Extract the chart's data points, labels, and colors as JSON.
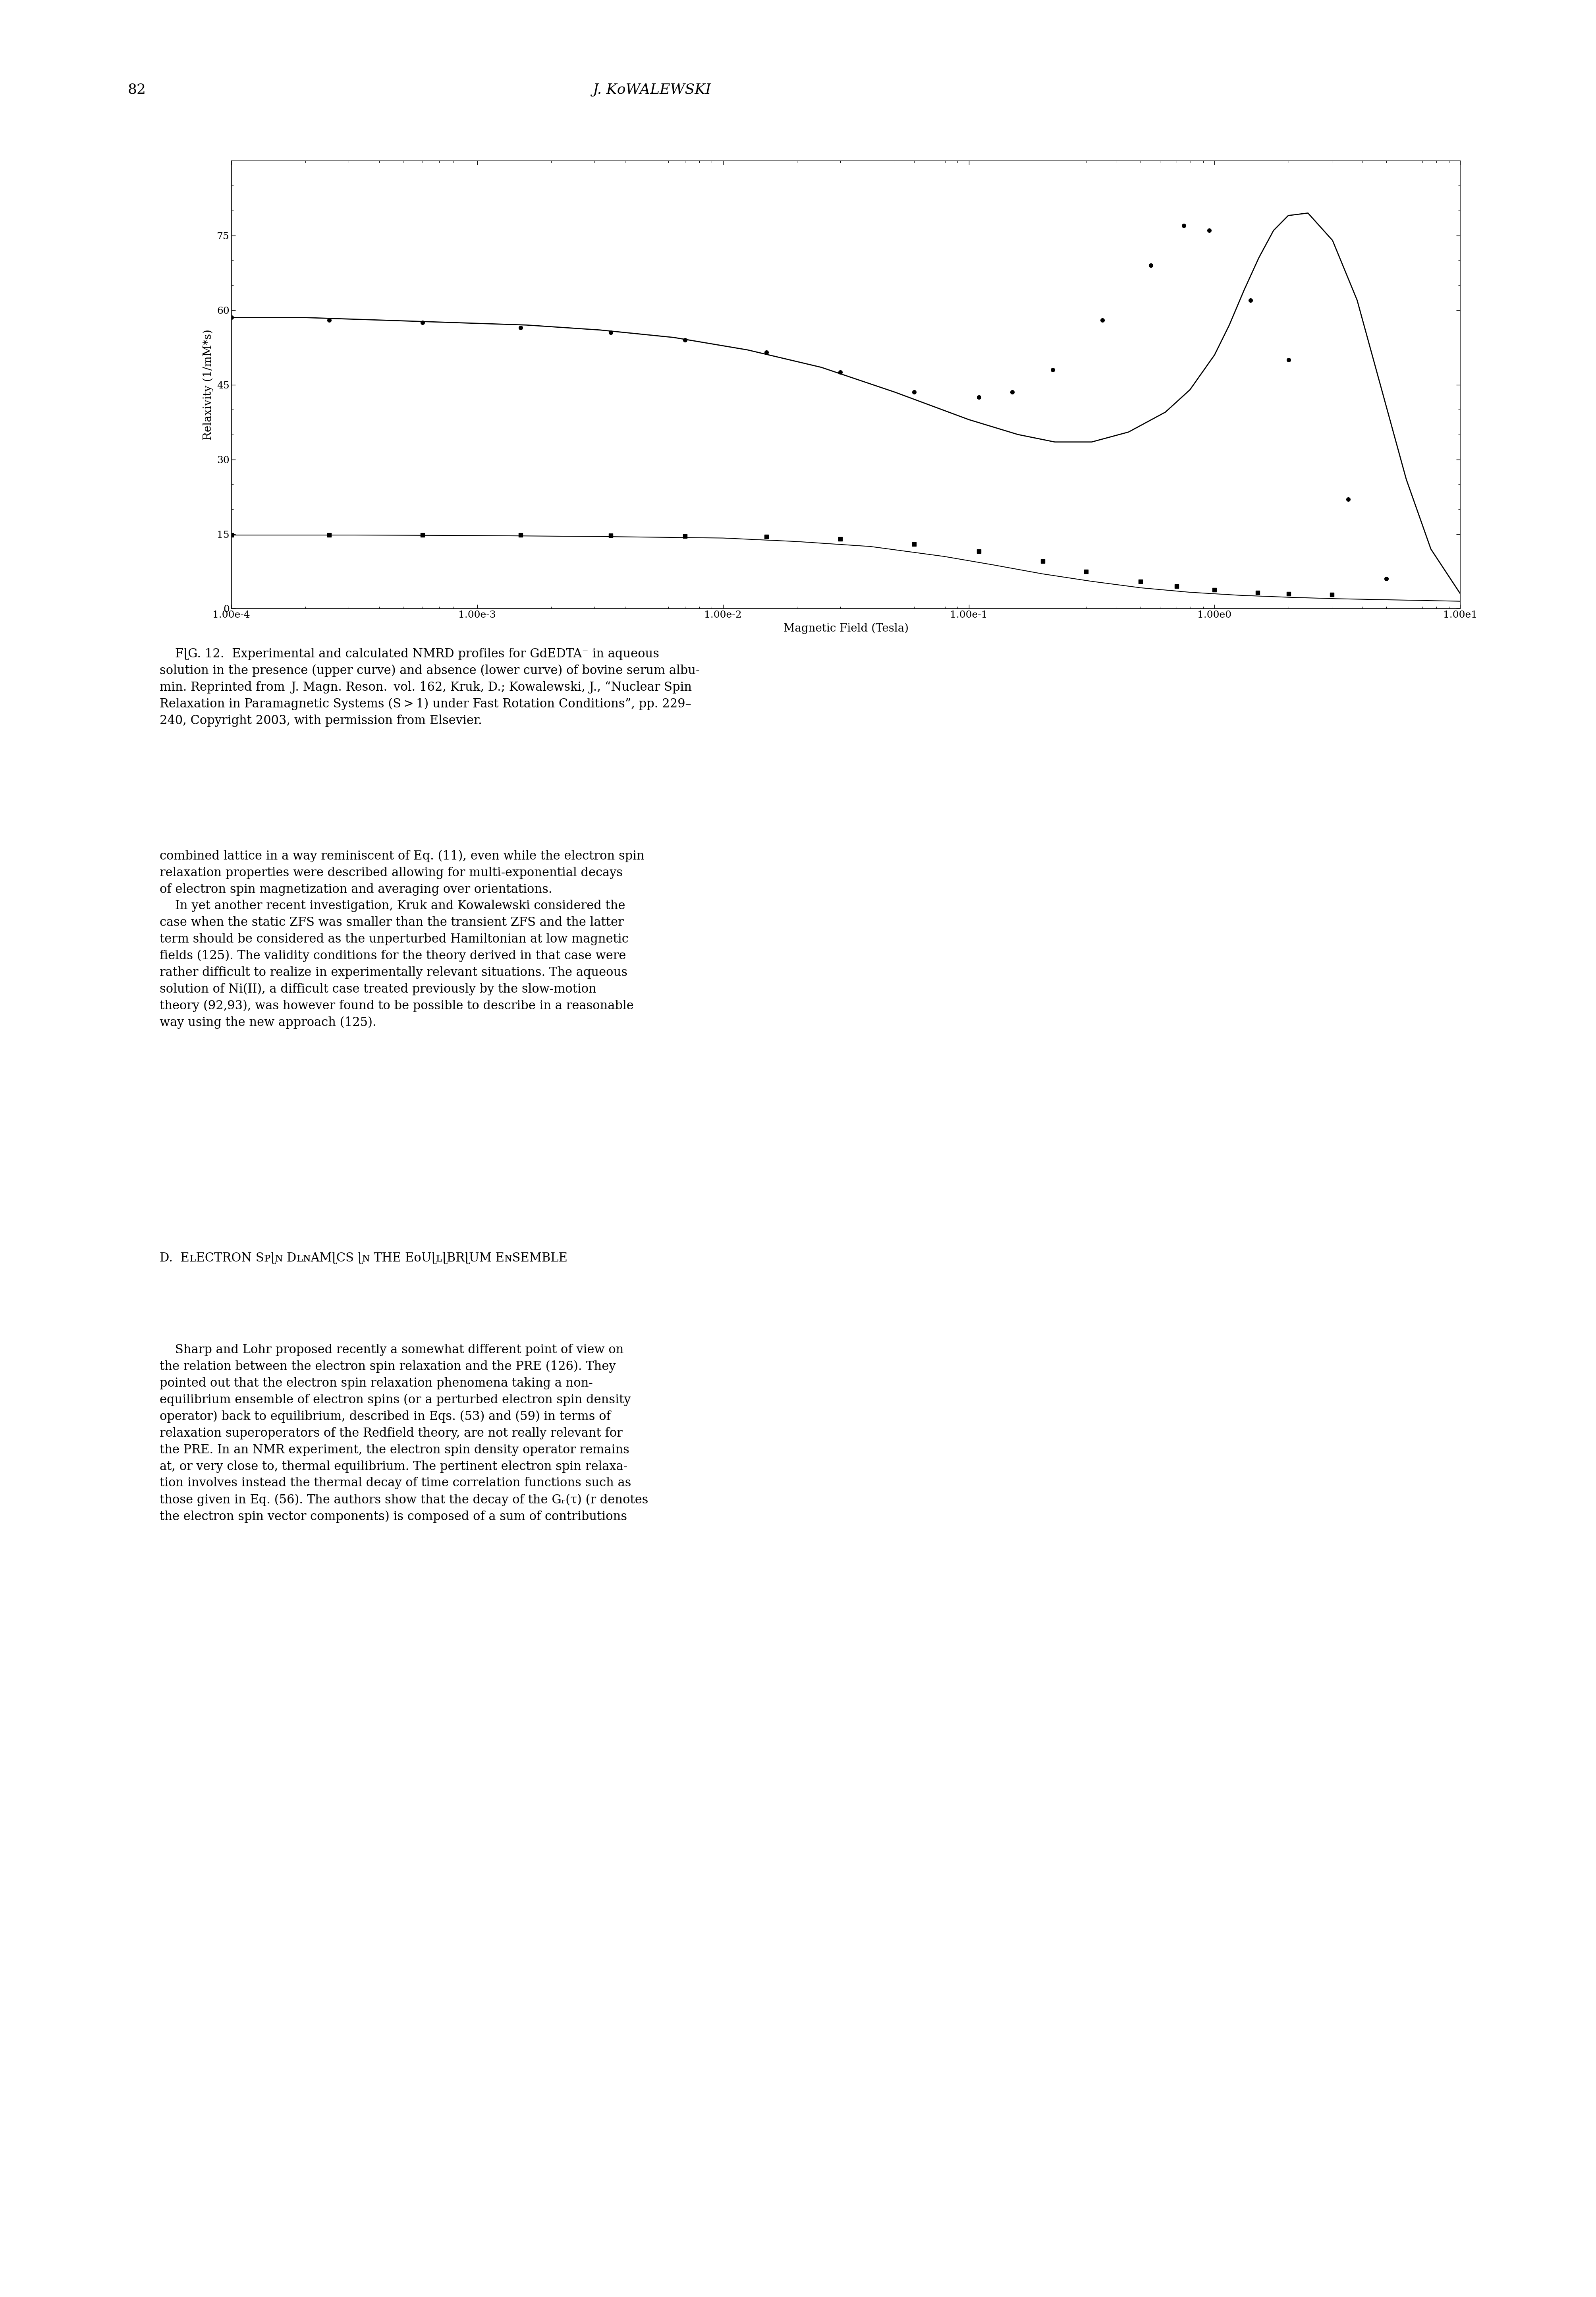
{
  "page_number": "82",
  "ylabel": "Relaxivity (1/mM*s)",
  "xlabel": "Magnetic Field (Tesla)",
  "ylim": [
    0,
    90
  ],
  "yticks": [
    0,
    15,
    30,
    45,
    60,
    75
  ],
  "xticks_log": [
    -4,
    -3,
    -2,
    -1,
    0,
    1
  ],
  "xtick_labels": [
    "1.00e-4",
    "1.00e-3",
    "1.00e-2",
    "1.00e-1",
    "1.00e0",
    "1.00e1"
  ],
  "upper_scatter_x": [
    0.0001,
    0.00025,
    0.0006,
    0.0015,
    0.0035,
    0.007,
    0.015,
    0.03,
    0.06,
    0.11,
    0.15,
    0.22,
    0.35,
    0.55,
    0.75,
    0.95,
    1.4,
    2.0,
    3.5,
    5.0
  ],
  "upper_scatter_y": [
    58.5,
    58.0,
    57.5,
    56.5,
    55.5,
    54.0,
    51.5,
    47.5,
    43.5,
    42.5,
    43.5,
    48.0,
    58.0,
    69.0,
    77.0,
    76.0,
    62.0,
    50.0,
    22.0,
    6.0
  ],
  "lower_scatter_x": [
    0.0001,
    0.00025,
    0.0006,
    0.0015,
    0.0035,
    0.007,
    0.015,
    0.03,
    0.06,
    0.11,
    0.2,
    0.3,
    0.5,
    0.7,
    1.0,
    1.5,
    2.0,
    3.0
  ],
  "lower_scatter_y": [
    14.8,
    14.8,
    14.8,
    14.8,
    14.7,
    14.6,
    14.5,
    14.0,
    13.0,
    11.5,
    9.5,
    7.5,
    5.5,
    4.5,
    3.8,
    3.2,
    3.0,
    2.8
  ],
  "upper_curve_x_log": [
    -4.0,
    -3.7,
    -3.4,
    -3.1,
    -2.8,
    -2.5,
    -2.2,
    -1.9,
    -1.6,
    -1.3,
    -1.0,
    -0.8,
    -0.65,
    -0.5,
    -0.35,
    -0.2,
    -0.1,
    0.0,
    0.06,
    0.12,
    0.18,
    0.24,
    0.3,
    0.38,
    0.48,
    0.58,
    0.68,
    0.78,
    0.88,
    1.0
  ],
  "upper_curve_y": [
    58.5,
    58.5,
    58.0,
    57.5,
    57.0,
    56.0,
    54.5,
    52.0,
    48.5,
    43.5,
    38.0,
    35.0,
    33.5,
    33.5,
    35.5,
    39.5,
    44.0,
    51.0,
    57.0,
    64.0,
    70.5,
    76.0,
    79.0,
    79.5,
    74.0,
    62.0,
    44.0,
    26.0,
    12.0,
    3.0
  ],
  "lower_curve_x_log": [
    -4.0,
    -3.5,
    -3.0,
    -2.5,
    -2.0,
    -1.7,
    -1.4,
    -1.1,
    -0.9,
    -0.7,
    -0.5,
    -0.3,
    -0.1,
    0.1,
    0.3,
    0.5,
    0.7,
    1.0
  ],
  "lower_curve_y": [
    14.8,
    14.8,
    14.7,
    14.5,
    14.2,
    13.5,
    12.5,
    10.5,
    8.8,
    7.0,
    5.5,
    4.2,
    3.3,
    2.7,
    2.3,
    2.0,
    1.8,
    1.5
  ]
}
